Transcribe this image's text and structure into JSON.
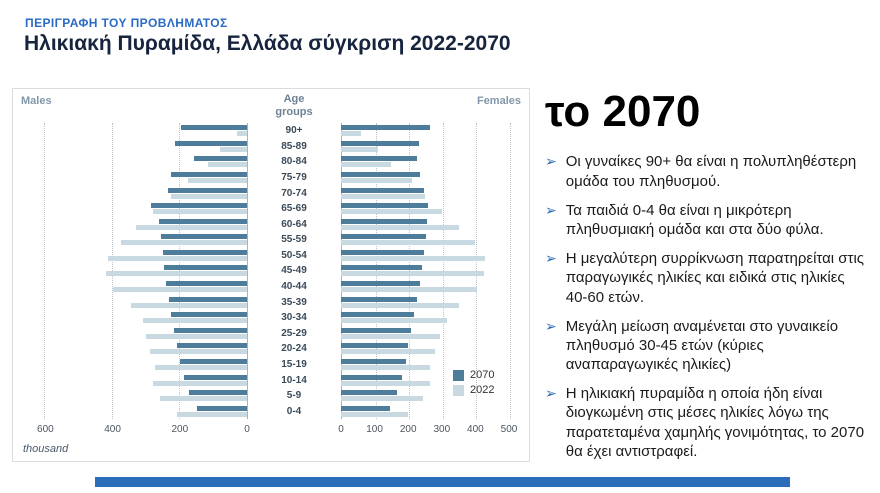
{
  "slide": {
    "eyebrow": "ΠΕΡΙΓΡΑΦΗ ΤΟΥ ΠΡΟΒΛΗΜΑΤΟΣ",
    "title": "Ηλικιακή Πυραμίδα, Ελλάδα σύγκριση 2022-2070",
    "accent_color": "#2a6ac4",
    "bottom_bar_color": "#2b6db8"
  },
  "right_panel": {
    "heading": "το 2070",
    "bullet_glyph": "➢",
    "bullets": [
      "Οι γυναίκες 90+ θα είναι η πολυπληθέστερη ομάδα του πληθυσμού.",
      "Τα παιδιά 0-4 θα είναι η μικρότερη πληθυσμιακή ομάδα και στα δύο φύλα.",
      "Η μεγαλύτερη συρρίκνωση παρατηρείται στις παραγωγικές ηλικίες και ειδικά στις ηλικίες 40-60 ετών.",
      "Μεγάλη μείωση αναμένεται στο γυναικείο πληθυσμό 30-45 ετών (κύριες αναπαραγωγικές ηλικίες)",
      "Η ηλικιακή πυραμίδα η οποία ήδη είναι διογκωμένη στις μέσες ηλικίες λόγω της παρατεταμένα χαμηλής γονιμότητας, το 2070 θα έχει αντιστραφεί."
    ]
  },
  "chart_data": {
    "type": "bar",
    "subtype": "population_pyramid",
    "headers": {
      "left": "Males",
      "center": "Age groups",
      "right": "Females"
    },
    "unit_label": "thousand",
    "age_groups": [
      "90+",
      "85-89",
      "80-84",
      "75-79",
      "70-74",
      "65-69",
      "60-64",
      "55-59",
      "50-54",
      "45-49",
      "40-44",
      "35-39",
      "30-34",
      "25-29",
      "20-24",
      "15-19",
      "10-14",
      "5-9",
      "0-4"
    ],
    "male": {
      "y2070": [
        195,
        215,
        158,
        225,
        235,
        285,
        262,
        255,
        250,
        246,
        240,
        232,
        226,
        218,
        208,
        198,
        188,
        172,
        150
      ],
      "y2022": [
        30,
        80,
        115,
        175,
        225,
        280,
        330,
        375,
        415,
        420,
        400,
        345,
        310,
        300,
        290,
        275,
        280,
        258,
        208
      ]
    },
    "female": {
      "y2070": [
        265,
        232,
        226,
        236,
        246,
        258,
        256,
        252,
        248,
        242,
        235,
        226,
        218,
        208,
        200,
        192,
        182,
        168,
        146
      ],
      "y2022": [
        60,
        110,
        150,
        210,
        250,
        300,
        350,
        400,
        430,
        425,
        405,
        350,
        315,
        295,
        280,
        265,
        265,
        243,
        198
      ]
    },
    "male_axis": {
      "ticks": [
        600,
        400,
        200,
        0
      ],
      "max": 600
    },
    "female_axis": {
      "ticks": [
        0,
        100,
        200,
        300,
        400,
        500
      ],
      "max": 500
    },
    "legend": [
      {
        "label": "2070",
        "color": "#4e7d9b"
      },
      {
        "label": "2022",
        "color": "#c8d9e2"
      }
    ],
    "grid": "dotted-vertical",
    "values_unit": "thousand"
  }
}
